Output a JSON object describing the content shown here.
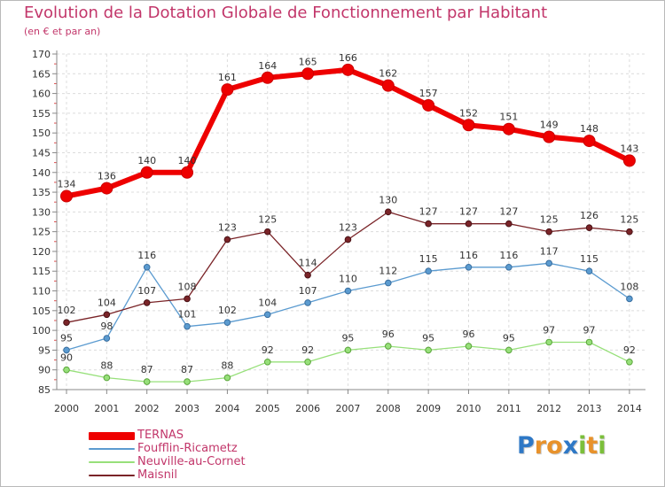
{
  "title": "Evolution de la Dotation Globale de Fonctionnement par Habitant",
  "subtitle": "(en € et par an)",
  "chart_data": {
    "type": "line",
    "title": "Evolution de la Dotation Globale de Fonctionnement par Habitant",
    "subtitle": "(en € et par an)",
    "xlabel": "",
    "ylabel": "",
    "ylim": [
      85,
      170
    ],
    "yticks": [
      85,
      90,
      95,
      100,
      105,
      110,
      115,
      120,
      125,
      130,
      135,
      140,
      145,
      150,
      155,
      160,
      165,
      170
    ],
    "x": [
      "2000",
      "2001",
      "2002",
      "2003",
      "2004",
      "2005",
      "2006",
      "2007",
      "2008",
      "2009",
      "2010",
      "2011",
      "2012",
      "2013",
      "2014"
    ],
    "grid": true,
    "legend_position": "bottom-left",
    "series": [
      {
        "name": "TERNAS",
        "color": "#ee0000",
        "values": [
          134,
          136,
          140,
          140,
          161,
          164,
          165,
          166,
          162,
          157,
          152,
          151,
          149,
          148,
          143
        ]
      },
      {
        "name": "Foufflin-Ricametz",
        "color": "#5b9bd0",
        "values": [
          95,
          98,
          116,
          101,
          102,
          104,
          107,
          110,
          112,
          115,
          116,
          116,
          117,
          115,
          108
        ]
      },
      {
        "name": "Neuville-au-Cornet",
        "color": "#97e07a",
        "values": [
          90,
          88,
          87,
          87,
          88,
          92,
          92,
          95,
          96,
          95,
          96,
          95,
          97,
          97,
          92
        ]
      },
      {
        "name": "Maisnil",
        "color": "#7a2428",
        "values": [
          102,
          104,
          107,
          108,
          123,
          125,
          114,
          123,
          130,
          127,
          127,
          127,
          125,
          126,
          125
        ]
      }
    ]
  },
  "logo": {
    "text": "Proxiti",
    "letters": [
      {
        "ch": "P",
        "color": "#2e78c6"
      },
      {
        "ch": "r",
        "color": "#e8922b"
      },
      {
        "ch": "o",
        "color": "#e8922b"
      },
      {
        "ch": "x",
        "color": "#2e78c6"
      },
      {
        "ch": "i",
        "color": "#7bbf3a"
      },
      {
        "ch": "t",
        "color": "#e8922b"
      },
      {
        "ch": "i",
        "color": "#7bbf3a"
      }
    ]
  }
}
